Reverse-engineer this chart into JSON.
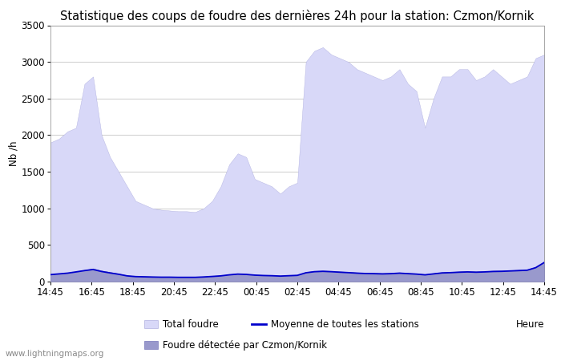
{
  "title": "Statistique des coups de foudre des dernières 24h pour la station: Czmon/Kornik",
  "ylabel": "Nb /h",
  "xlabel": "Heure",
  "watermark": "www.lightningmaps.org",
  "ylim": [
    0,
    3500
  ],
  "yticks": [
    0,
    500,
    1000,
    1500,
    2000,
    2500,
    3000,
    3500
  ],
  "x_labels": [
    "14:45",
    "16:45",
    "18:45",
    "20:45",
    "22:45",
    "00:45",
    "02:45",
    "04:45",
    "06:45",
    "08:45",
    "10:45",
    "12:45",
    "14:45"
  ],
  "total_foudre": [
    1900,
    1950,
    2050,
    2100,
    2700,
    2800,
    2000,
    1700,
    1500,
    1300,
    1100,
    1050,
    1000,
    980,
    970,
    960,
    960,
    950,
    1000,
    1100,
    1300,
    1600,
    1750,
    1700,
    1400,
    1350,
    1300,
    1200,
    1300,
    1350,
    3000,
    3150,
    3200,
    3100,
    3050,
    3000,
    2900,
    2850,
    2800,
    2750,
    2800,
    2900,
    2700,
    2600,
    2100,
    2500,
    2800,
    2800,
    2900,
    2900,
    2750,
    2800,
    2900,
    2800,
    2700,
    2750,
    2800,
    3050,
    3100
  ],
  "foudre_locale": [
    100,
    110,
    120,
    140,
    160,
    180,
    150,
    130,
    110,
    85,
    75,
    72,
    70,
    68,
    68,
    65,
    65,
    65,
    70,
    78,
    85,
    100,
    110,
    105,
    95,
    90,
    88,
    82,
    88,
    92,
    130,
    145,
    150,
    145,
    138,
    132,
    125,
    120,
    118,
    115,
    118,
    125,
    118,
    112,
    100,
    115,
    128,
    132,
    138,
    142,
    138,
    142,
    148,
    150,
    155,
    160,
    165,
    200,
    270
  ],
  "moyenne": [
    95,
    105,
    115,
    132,
    150,
    165,
    138,
    118,
    100,
    78,
    68,
    65,
    62,
    60,
    60,
    58,
    58,
    58,
    63,
    70,
    78,
    92,
    102,
    98,
    88,
    83,
    80,
    75,
    80,
    85,
    120,
    135,
    140,
    135,
    128,
    122,
    115,
    110,
    108,
    105,
    108,
    115,
    108,
    102,
    92,
    105,
    118,
    122,
    128,
    132,
    128,
    132,
    138,
    140,
    145,
    150,
    155,
    190,
    260
  ],
  "fill_color_total": "#d8d8f8",
  "fill_color_local": "#9999cc",
  "line_color_avg": "#0000cc",
  "background_color": "#ffffff",
  "grid_color": "#cccccc",
  "title_fontsize": 10.5,
  "axis_fontsize": 8.5,
  "legend_fontsize": 8.5,
  "legend_items_row1": [
    "Total foudre",
    "Moyenne de toutes les stations"
  ],
  "legend_items_row2": [
    "Foudre détectée par Czmon/Kornik"
  ]
}
